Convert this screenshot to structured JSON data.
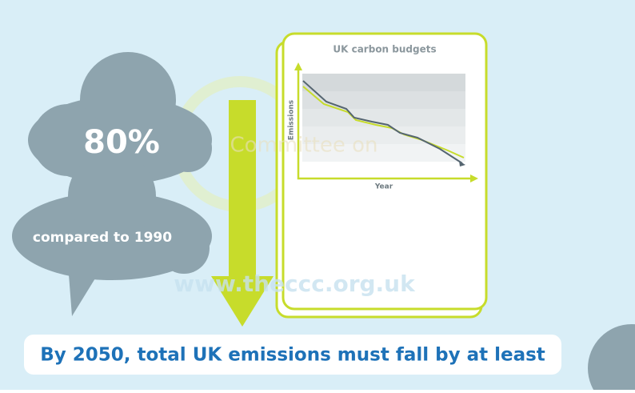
{
  "watermark": {
    "line1": "Committee on",
    "url": "www.theccc.org.uk"
  },
  "cloud_top": {
    "text": "80%"
  },
  "cloud_bottom": {
    "text": "compared to 1990"
  },
  "card": {
    "title": "UK carbon budgets",
    "y_label": "Emissions",
    "x_label": "Year"
  },
  "banner": {
    "text": "By 2050, total UK emissions must fall by at least"
  }
}
